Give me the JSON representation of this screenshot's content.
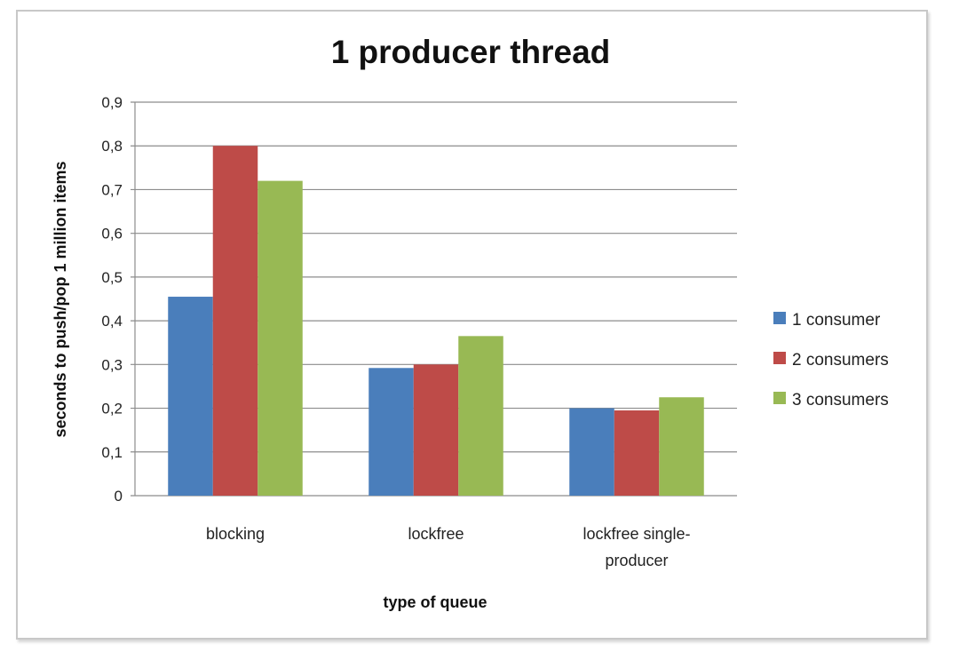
{
  "chart_data": {
    "type": "bar",
    "title": "1 producer thread",
    "xlabel": "type of queue",
    "ylabel": "seconds to push/pop 1 million items",
    "categories": [
      [
        "blocking"
      ],
      [
        "lockfree"
      ],
      [
        "lockfree single-",
        "producer"
      ]
    ],
    "series": [
      {
        "name": "1 consumer",
        "color": "#4a7ebb",
        "values": [
          0.455,
          0.292,
          0.2
        ]
      },
      {
        "name": "2 consumers",
        "color": "#be4b48",
        "values": [
          0.8,
          0.3,
          0.195
        ]
      },
      {
        "name": "3 consumers",
        "color": "#98b954",
        "values": [
          0.72,
          0.365,
          0.225
        ]
      }
    ],
    "ylim": [
      0,
      0.9
    ],
    "yticks": [
      {
        "value": 0,
        "label": "0"
      },
      {
        "value": 0.1,
        "label": "0,1"
      },
      {
        "value": 0.2,
        "label": "0,2"
      },
      {
        "value": 0.3,
        "label": "0,3"
      },
      {
        "value": 0.4,
        "label": "0,4"
      },
      {
        "value": 0.5,
        "label": "0,5"
      },
      {
        "value": 0.6,
        "label": "0,6"
      },
      {
        "value": 0.7,
        "label": "0,7"
      },
      {
        "value": 0.8,
        "label": "0,8"
      },
      {
        "value": 0.9,
        "label": "0,9"
      }
    ],
    "grid": true,
    "legend_position": "right"
  }
}
